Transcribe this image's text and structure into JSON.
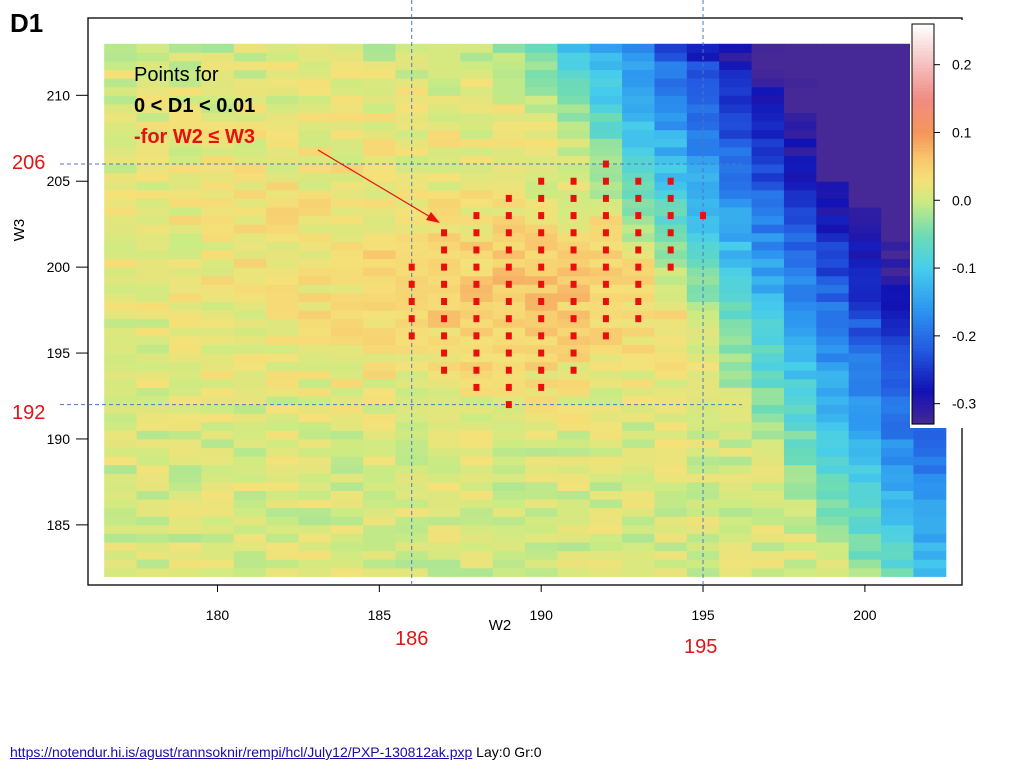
{
  "slide_title": "D1",
  "annotation": {
    "line1": "Points for",
    "line2": "0 < D1 < 0.01",
    "line3": "-for W2 ≤ W3"
  },
  "marker_labels": {
    "w3_upper": "206",
    "w3_lower": "192",
    "w2_left": "186",
    "w2_right": "195"
  },
  "footer": {
    "link_text": "https://notendur.hi.is/agust/rannsoknir/rempi/hcl/July12/PXP-130812ak.pxp",
    "suffix": " Lay:0 Gr:0"
  },
  "colors": {
    "marker_line": "#4a78c8",
    "points": "#e8100d",
    "label_red": "#e21414"
  },
  "chart_data": {
    "type": "heatmap",
    "xlabel": "W2",
    "ylabel": "W3",
    "x_ticks": [
      180,
      185,
      190,
      195,
      200
    ],
    "y_ticks": [
      185,
      190,
      195,
      200,
      205,
      210
    ],
    "xlim": [
      176,
      203
    ],
    "ylim": [
      181.5,
      214.5
    ],
    "x_cell_range": [
      176.5,
      202.5
    ],
    "y_cell_range": [
      182,
      213
    ],
    "colorbar": {
      "ticks": [
        0.2,
        0.1,
        0.0,
        -0.1,
        -0.2,
        -0.3
      ],
      "range": [
        -0.33,
        0.26
      ]
    },
    "marker_lines": {
      "x": [
        186,
        195
      ],
      "y": [
        206,
        192
      ]
    },
    "highlight_points": [
      {
        "x": 186,
        "y": [
          196,
          197,
          198,
          199,
          200
        ]
      },
      {
        "x": 187,
        "y": [
          194,
          195,
          196,
          197,
          198,
          199,
          200,
          201,
          202
        ]
      },
      {
        "x": 188,
        "y": [
          193,
          194,
          195,
          196,
          197,
          198,
          199,
          200,
          201,
          202,
          203
        ]
      },
      {
        "x": 189,
        "y": [
          192,
          193,
          194,
          195,
          196,
          197,
          198,
          199,
          200,
          201,
          202,
          203,
          204
        ]
      },
      {
        "x": 190,
        "y": [
          193,
          194,
          195,
          196,
          197,
          198,
          199,
          200,
          201,
          202,
          203,
          204,
          205
        ]
      },
      {
        "x": 191,
        "y": [
          194,
          195,
          196,
          197,
          198,
          199,
          200,
          201,
          202,
          203,
          204,
          205
        ]
      },
      {
        "x": 192,
        "y": [
          196,
          197,
          198,
          199,
          200,
          201,
          202,
          203,
          204,
          205,
          206
        ]
      },
      {
        "x": 193,
        "y": [
          197,
          198,
          199,
          200,
          201,
          202,
          203,
          204,
          205
        ]
      },
      {
        "x": 194,
        "y": [
          200,
          201,
          202,
          203,
          204,
          205
        ]
      },
      {
        "x": 195,
        "y": [
          203
        ]
      }
    ]
  }
}
